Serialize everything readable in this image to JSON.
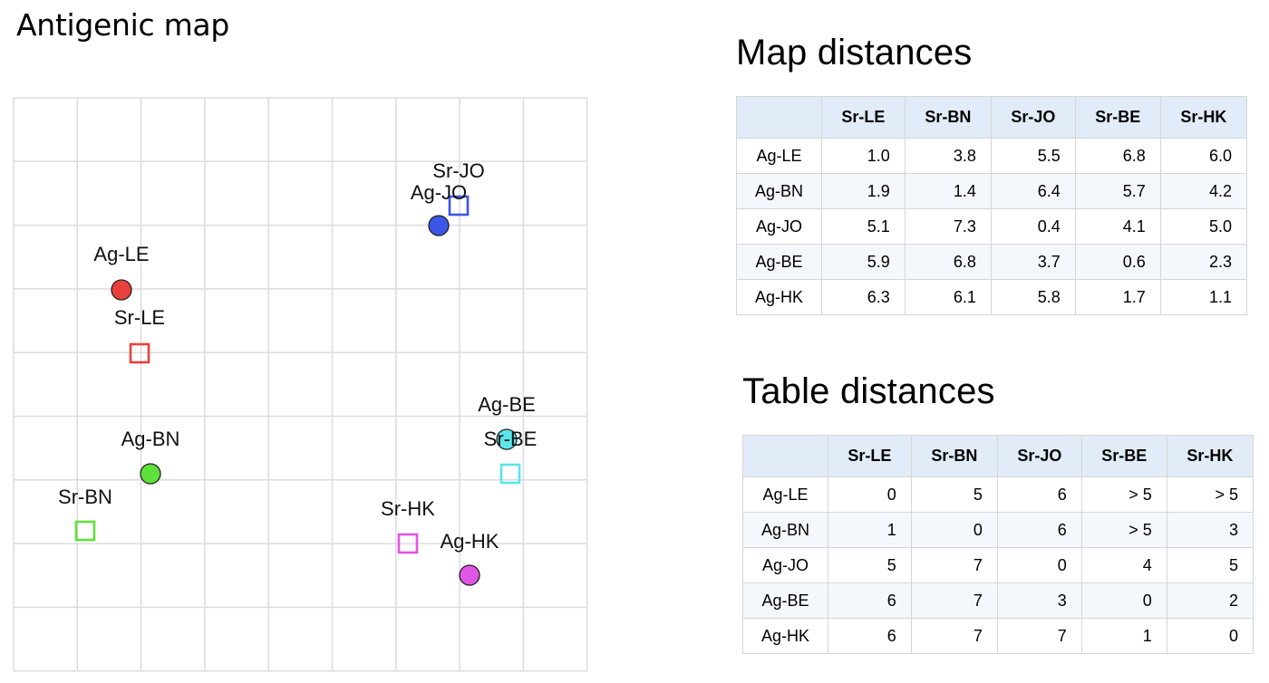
{
  "page_title": "Antigenic map",
  "antigenic_map": {
    "grid": true,
    "points": [
      {
        "name": "Ag-LE",
        "kind": "antigen",
        "shape": "circle",
        "color": "#e8413d"
      },
      {
        "name": "Sr-LE",
        "kind": "serum",
        "shape": "square",
        "color": "#e8413d"
      },
      {
        "name": "Ag-JO",
        "kind": "antigen",
        "shape": "circle",
        "color": "#3b55e6"
      },
      {
        "name": "Sr-JO",
        "kind": "serum",
        "shape": "square",
        "color": "#3b55e6"
      },
      {
        "name": "Ag-BN",
        "kind": "antigen",
        "shape": "circle",
        "color": "#5fe03a"
      },
      {
        "name": "Sr-BN",
        "kind": "serum",
        "shape": "square",
        "color": "#5fe03a"
      },
      {
        "name": "Ag-BE",
        "kind": "antigen",
        "shape": "circle",
        "color": "#5ae6ea"
      },
      {
        "name": "Sr-BE",
        "kind": "serum",
        "shape": "square",
        "color": "#5ae6ea"
      },
      {
        "name": "Sr-HK",
        "kind": "serum",
        "shape": "square",
        "color": "#e055e4"
      },
      {
        "name": "Ag-HK",
        "kind": "antigen",
        "shape": "circle",
        "color": "#e055e4"
      }
    ]
  },
  "map_distances": {
    "title": "Map distances",
    "columns": [
      "Sr-LE",
      "Sr-BN",
      "Sr-JO",
      "Sr-BE",
      "Sr-HK"
    ],
    "rows": [
      {
        "label": "Ag-LE",
        "values": [
          "1.0",
          "3.8",
          "5.5",
          "6.8",
          "6.0"
        ]
      },
      {
        "label": "Ag-BN",
        "values": [
          "1.9",
          "1.4",
          "6.4",
          "5.7",
          "4.2"
        ]
      },
      {
        "label": "Ag-JO",
        "values": [
          "5.1",
          "7.3",
          "0.4",
          "4.1",
          "5.0"
        ]
      },
      {
        "label": "Ag-BE",
        "values": [
          "5.9",
          "6.8",
          "3.7",
          "0.6",
          "2.3"
        ]
      },
      {
        "label": "Ag-HK",
        "values": [
          "6.3",
          "6.1",
          "5.8",
          "1.7",
          "1.1"
        ]
      }
    ]
  },
  "table_distances": {
    "title": "Table distances",
    "columns": [
      "Sr-LE",
      "Sr-BN",
      "Sr-JO",
      "Sr-BE",
      "Sr-HK"
    ],
    "rows": [
      {
        "label": "Ag-LE",
        "values": [
          "0",
          "5",
          "6",
          "> 5",
          "> 5"
        ]
      },
      {
        "label": "Ag-BN",
        "values": [
          "1",
          "0",
          "6",
          "> 5",
          "3"
        ]
      },
      {
        "label": "Ag-JO",
        "values": [
          "5",
          "7",
          "0",
          "4",
          "5"
        ]
      },
      {
        "label": "Ag-BE",
        "values": [
          "6",
          "7",
          "3",
          "0",
          "2"
        ]
      },
      {
        "label": "Ag-HK",
        "values": [
          "6",
          "7",
          "7",
          "1",
          "0"
        ]
      }
    ]
  }
}
